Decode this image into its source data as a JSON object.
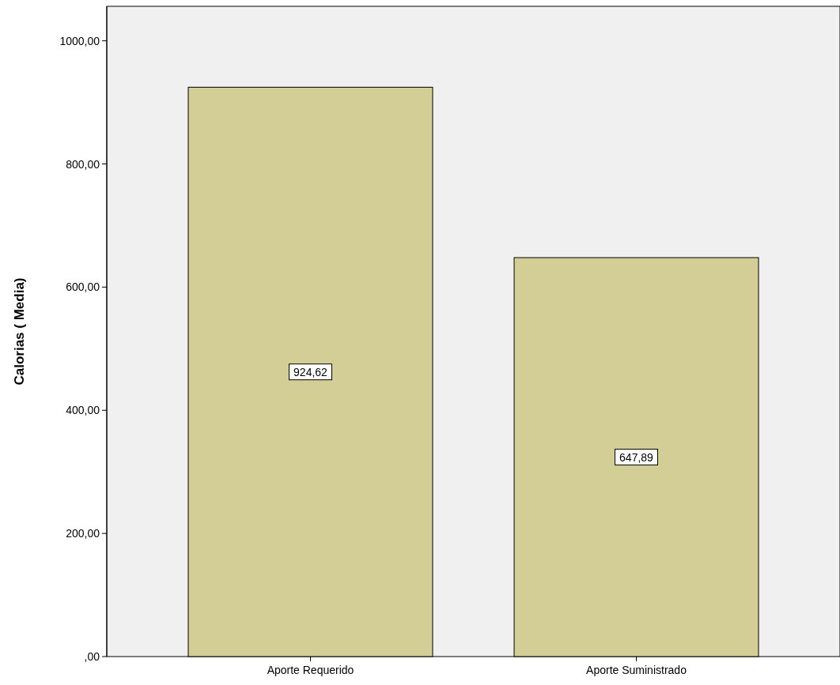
{
  "chart_data": {
    "type": "bar",
    "ylabel": "Calorias ( Media)",
    "categories": [
      "Aporte Requerido",
      "Aporte Suministrado"
    ],
    "values": [
      924.62,
      647.89
    ],
    "color": "#d3cd96",
    "value_labels": [
      "924,62",
      "647,89"
    ],
    "ylim": [
      0,
      1056
    ],
    "yticks": [
      {
        "value": 0,
        "label": ",00"
      },
      {
        "value": 200,
        "label": "200,00"
      },
      {
        "value": 400,
        "label": "400,00"
      },
      {
        "value": 600,
        "label": "600,00"
      },
      {
        "value": 800,
        "label": "800,00"
      },
      {
        "value": 1000,
        "label": "1000,00"
      }
    ],
    "grid": false
  }
}
